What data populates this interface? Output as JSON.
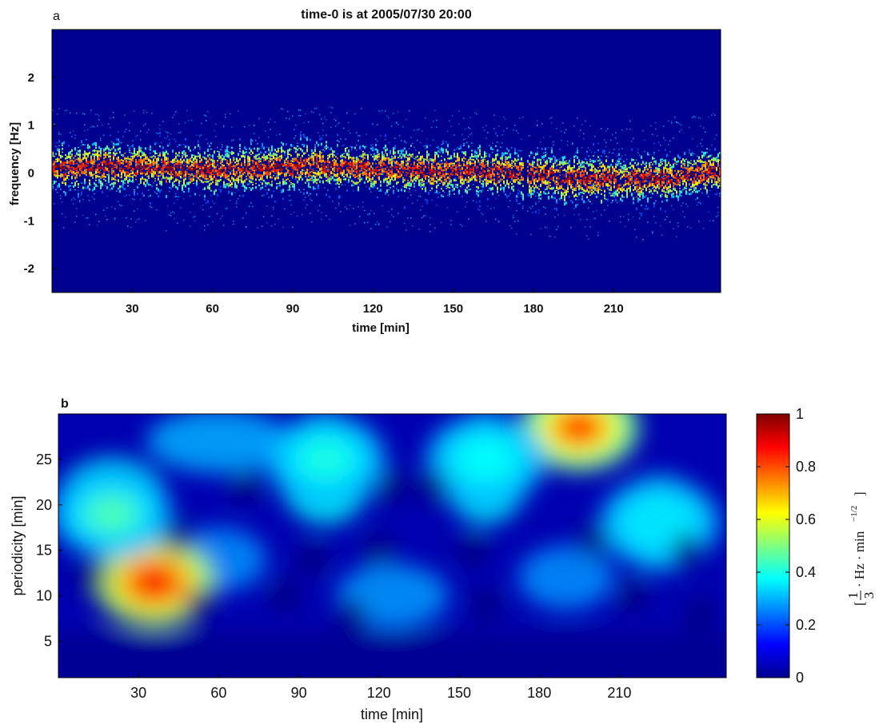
{
  "chart_data": [
    {
      "panel": "a",
      "type": "heatmap",
      "title": "time-0 is at 2005/07/30 20:00",
      "xlabel": "time [min]",
      "ylabel": "frequency [Hz]",
      "xlim": [
        0,
        250
      ],
      "ylim": [
        -2.5,
        3.0
      ],
      "xticks": [
        30,
        60,
        90,
        120,
        150,
        180,
        210
      ],
      "yticks": [
        -2,
        -1,
        0,
        1,
        2
      ],
      "ridge": {
        "description_points_x": [
          0,
          20,
          40,
          60,
          80,
          100,
          120,
          140,
          160,
          175,
          190,
          210,
          230,
          250
        ],
        "center_frequency": [
          0.1,
          0.15,
          0.1,
          0.05,
          0.1,
          0.15,
          0.1,
          0.05,
          0.05,
          0.0,
          -0.1,
          -0.15,
          -0.1,
          0.05
        ]
      },
      "colormap": "jet"
    },
    {
      "panel": "b",
      "type": "heatmap",
      "xlabel": "time [min]",
      "ylabel": "periodicity [min]",
      "xlim": [
        0,
        250
      ],
      "ylim": [
        1,
        30
      ],
      "xticks": [
        30,
        60,
        90,
        120,
        150,
        180,
        210
      ],
      "yticks": [
        5,
        10,
        15,
        20,
        25
      ],
      "peaks": [
        {
          "time": 36,
          "period": 11.5,
          "value": 0.88
        },
        {
          "time": 195,
          "period": 28.5,
          "value": 0.82
        },
        {
          "time": 20,
          "period": 19,
          "value": 0.45
        },
        {
          "time": 100,
          "period": 25,
          "value": 0.4
        },
        {
          "time": 160,
          "period": 25,
          "value": 0.38
        },
        {
          "time": 225,
          "period": 18,
          "value": 0.35
        }
      ],
      "colormap": "jet",
      "colorbar": {
        "min": 0,
        "max": 1,
        "ticks": [
          "0",
          "0.2",
          "0.4",
          "0.6",
          "0.8",
          "1"
        ],
        "label": "[1/3 · Hz · min^-1/2]"
      }
    }
  ],
  "labels": {
    "panel_a": "a",
    "panel_b": "b",
    "unit_num": "1",
    "unit_den": "3",
    "unit_text": "· Hz · min",
    "unit_exp": "−1/2",
    "bracket_open": "[",
    "bracket_close": "]"
  }
}
